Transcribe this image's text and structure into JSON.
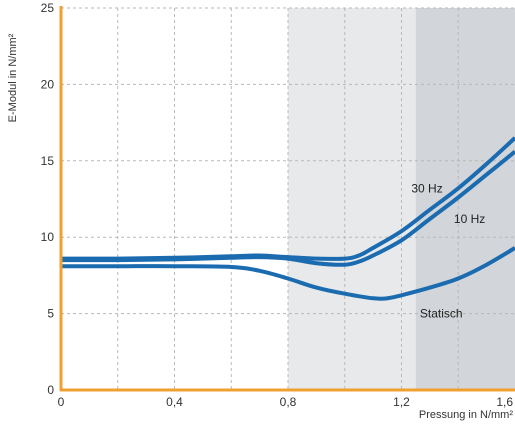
{
  "chart_data": {
    "type": "line",
    "xlabel": "Pressung in N/mm²",
    "ylabel": "E-Modul in N/mm²",
    "xlim": [
      0,
      1.6
    ],
    "ylim": [
      0,
      25
    ],
    "x_ticks": [
      {
        "value": 0,
        "label": "0"
      },
      {
        "value": 0.4,
        "label": "0,4"
      },
      {
        "value": 0.8,
        "label": "0,8"
      },
      {
        "value": 1.2,
        "label": "1,2"
      },
      {
        "value": 1.6,
        "label": "1,6"
      }
    ],
    "x_grid": [
      0.2,
      0.4,
      0.6,
      0.8,
      1.0,
      1.2,
      1.4
    ],
    "y_ticks": [
      {
        "value": 0,
        "label": "0"
      },
      {
        "value": 5,
        "label": "5"
      },
      {
        "value": 10,
        "label": "10"
      },
      {
        "value": 15,
        "label": "15"
      },
      {
        "value": 20,
        "label": "20"
      },
      {
        "value": 25,
        "label": "25"
      }
    ],
    "grid": true,
    "shaded_regions": [
      {
        "x_start": 0.8,
        "x_end": 1.25,
        "color": "#e8e9eb"
      },
      {
        "x_start": 1.25,
        "x_end": 1.6,
        "color": "#d2d5d9"
      }
    ],
    "colors": {
      "series": "#1a6bb0",
      "axis": "#f0a030",
      "grid": "#b8b8b8",
      "background": "#ffffff"
    },
    "series": [
      {
        "name": "30 Hz",
        "x": [
          0,
          0.2,
          0.4,
          0.6,
          0.7,
          0.8,
          0.9,
          1.0,
          1.05,
          1.1,
          1.2,
          1.3,
          1.4,
          1.5,
          1.6
        ],
        "y": [
          8.6,
          8.6,
          8.65,
          8.75,
          8.8,
          8.7,
          8.6,
          8.6,
          8.8,
          9.3,
          10.4,
          11.8,
          13.2,
          14.8,
          16.5
        ],
        "label_at": [
          1.29,
          13.2
        ]
      },
      {
        "name": "10 Hz",
        "x": [
          0,
          0.2,
          0.4,
          0.6,
          0.7,
          0.8,
          0.9,
          1.0,
          1.05,
          1.1,
          1.2,
          1.3,
          1.4,
          1.5,
          1.6
        ],
        "y": [
          8.5,
          8.5,
          8.55,
          8.65,
          8.7,
          8.6,
          8.3,
          8.2,
          8.4,
          8.8,
          9.8,
          11.2,
          12.6,
          14.1,
          15.6
        ],
        "label_at": [
          1.44,
          11.2
        ]
      },
      {
        "name": "Statisch",
        "x": [
          0,
          0.2,
          0.4,
          0.6,
          0.7,
          0.8,
          0.9,
          1.0,
          1.1,
          1.15,
          1.2,
          1.3,
          1.4,
          1.5,
          1.6
        ],
        "y": [
          8.1,
          8.1,
          8.1,
          8.05,
          7.8,
          7.3,
          6.7,
          6.3,
          6.0,
          6.0,
          6.2,
          6.7,
          7.3,
          8.2,
          9.3
        ],
        "label_at": [
          1.34,
          5.0
        ]
      }
    ]
  }
}
